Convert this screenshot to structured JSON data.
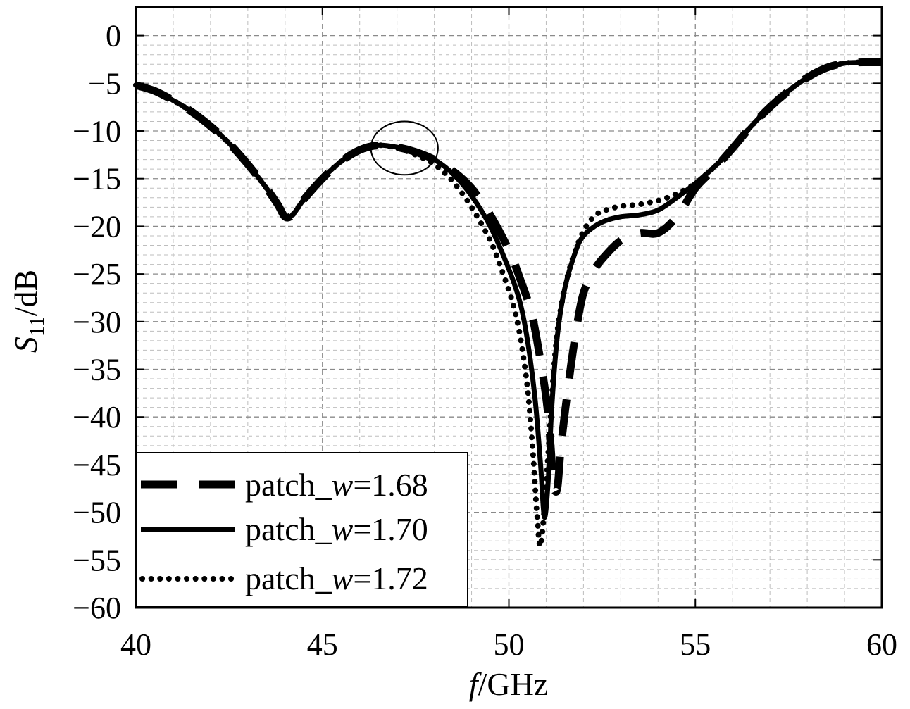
{
  "chart_data": {
    "type": "line",
    "title": "",
    "xlabel_italic": "f",
    "xlabel_rest": "/GHz",
    "ylabel_italic": "S",
    "ylabel_sub": "11",
    "ylabel_rest": "/dB",
    "xlim": [
      40,
      60
    ],
    "ylim": [
      -60,
      3
    ],
    "xticks": [
      40,
      45,
      50,
      55,
      60
    ],
    "yticks": [
      0,
      -5,
      -10,
      -15,
      -20,
      -25,
      -30,
      -35,
      -40,
      -45,
      -50,
      -55,
      -60
    ],
    "grid": true,
    "legend_position": "bottom-left",
    "annotation": {
      "type": "ellipse",
      "cx": 47.2,
      "cy": -11.8,
      "rx": 0.9,
      "ry": 2.8
    },
    "series": [
      {
        "name_prefix": "patch_",
        "name_italic": "w",
        "name_suffix": "=1.68",
        "style": "dashed",
        "x": [
          40,
          40.5,
          41,
          41.5,
          42,
          42.5,
          43,
          43.5,
          43.8,
          44,
          44.2,
          44.5,
          45,
          45.5,
          46,
          46.5,
          47,
          47.5,
          48,
          48.5,
          49,
          49.5,
          50,
          50.3,
          50.6,
          50.8,
          51,
          51.1,
          51.2,
          51.3,
          51.4,
          51.6,
          51.8,
          52,
          52.3,
          52.6,
          53,
          53.5,
          54,
          54.5,
          55,
          55.5,
          56,
          56.5,
          57,
          57.5,
          58,
          58.5,
          59,
          59.5,
          60
        ],
        "y": [
          -5.2,
          -5.8,
          -6.8,
          -8.0,
          -9.5,
          -11.3,
          -13.5,
          -16.0,
          -17.7,
          -19.0,
          -18.8,
          -17.2,
          -15.0,
          -13.2,
          -12.0,
          -11.5,
          -11.7,
          -12.2,
          -13.0,
          -14.2,
          -16.0,
          -18.8,
          -22.5,
          -25.5,
          -29.0,
          -33.0,
          -38.0,
          -42.0,
          -47.0,
          -47.5,
          -43.0,
          -36.5,
          -31.0,
          -27.0,
          -24.5,
          -23.0,
          -21.5,
          -20.7,
          -20.7,
          -19.0,
          -16.0,
          -14.0,
          -11.8,
          -9.5,
          -7.5,
          -5.8,
          -4.4,
          -3.4,
          -2.9,
          -2.8,
          -2.8
        ]
      },
      {
        "name_prefix": "patch_",
        "name_italic": "w",
        "name_suffix": "=1.70",
        "style": "solid",
        "x": [
          40,
          40.5,
          41,
          41.5,
          42,
          42.5,
          43,
          43.5,
          43.8,
          44,
          44.2,
          44.5,
          45,
          45.5,
          46,
          46.5,
          47,
          47.5,
          48,
          48.5,
          49,
          49.5,
          50,
          50.3,
          50.5,
          50.7,
          50.85,
          50.95,
          51.05,
          51.15,
          51.3,
          51.5,
          51.8,
          52,
          52.3,
          52.6,
          53,
          53.5,
          54,
          54.5,
          55,
          55.5,
          56,
          56.5,
          57,
          57.5,
          58,
          58.5,
          59,
          59.5,
          60
        ],
        "y": [
          -5.2,
          -5.8,
          -6.8,
          -8.0,
          -9.5,
          -11.3,
          -13.5,
          -16.0,
          -17.7,
          -19.0,
          -18.8,
          -17.2,
          -15.0,
          -13.2,
          -12.0,
          -11.5,
          -11.7,
          -12.2,
          -13.0,
          -14.5,
          -16.8,
          -20.0,
          -24.5,
          -28.0,
          -32.0,
          -38.0,
          -45.0,
          -50.5,
          -47.0,
          -39.0,
          -31.5,
          -26.5,
          -22.5,
          -21.0,
          -20.0,
          -19.4,
          -19.0,
          -18.8,
          -18.3,
          -17.0,
          -15.5,
          -13.8,
          -11.8,
          -9.5,
          -7.5,
          -5.8,
          -4.4,
          -3.4,
          -2.9,
          -2.8,
          -2.8
        ]
      },
      {
        "name_prefix": "patch_",
        "name_italic": "w",
        "name_suffix": "=1.72",
        "style": "dotted",
        "x": [
          40,
          40.5,
          41,
          41.5,
          42,
          42.5,
          43,
          43.5,
          43.8,
          44,
          44.2,
          44.5,
          45,
          45.5,
          46,
          46.5,
          47,
          47.5,
          48,
          48.5,
          49,
          49.5,
          49.8,
          50.1,
          50.3,
          50.5,
          50.65,
          50.75,
          50.85,
          51.0,
          51.15,
          51.3,
          51.5,
          51.7,
          52,
          52.3,
          52.6,
          53,
          53.5,
          54,
          54.5,
          55,
          55.5,
          56,
          56.5,
          57,
          57.5,
          58,
          58.5,
          59,
          59.5,
          60
        ],
        "y": [
          -5.2,
          -5.8,
          -6.8,
          -8.0,
          -9.5,
          -11.3,
          -13.5,
          -16.0,
          -17.7,
          -19.0,
          -18.8,
          -17.2,
          -15.0,
          -13.2,
          -12.0,
          -11.5,
          -11.8,
          -12.5,
          -13.5,
          -15.3,
          -18.0,
          -21.5,
          -24.5,
          -28.0,
          -31.5,
          -37.0,
          -44.0,
          -50.0,
          -53.5,
          -47.0,
          -38.0,
          -31.0,
          -26.5,
          -23.5,
          -20.5,
          -18.9,
          -18.3,
          -17.9,
          -17.7,
          -17.3,
          -16.6,
          -15.5,
          -13.8,
          -11.8,
          -9.5,
          -7.5,
          -5.8,
          -4.4,
          -3.4,
          -2.9,
          -2.8,
          -2.8
        ]
      }
    ]
  }
}
